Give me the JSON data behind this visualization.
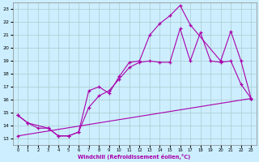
{
  "xlabel": "Windchill (Refroidissement éolien,°C)",
  "bg_color": "#cceeff",
  "grid_color": "#aacccc",
  "line_color": "#aa00aa",
  "xlim": [
    -0.5,
    23.5
  ],
  "ylim": [
    12.5,
    23.5
  ],
  "xticks": [
    0,
    1,
    2,
    3,
    4,
    5,
    6,
    7,
    8,
    9,
    10,
    11,
    12,
    13,
    14,
    15,
    16,
    17,
    18,
    19,
    20,
    21,
    22,
    23
  ],
  "yticks": [
    13,
    14,
    15,
    16,
    17,
    18,
    19,
    20,
    21,
    22,
    23
  ],
  "line1_x": [
    0,
    1,
    3,
    4,
    5,
    6,
    7,
    8,
    9,
    10,
    11,
    12,
    13,
    14,
    15,
    16,
    17,
    20,
    21,
    22,
    23
  ],
  "line1_y": [
    14.8,
    14.2,
    13.8,
    13.2,
    13.2,
    13.5,
    16.7,
    17.0,
    16.5,
    17.8,
    18.9,
    19.0,
    21.0,
    21.9,
    22.5,
    23.3,
    21.8,
    19.0,
    21.3,
    19.0,
    16.1
  ],
  "line2_x": [
    0,
    1,
    2,
    3,
    4,
    5,
    6,
    7,
    8,
    9,
    10,
    11,
    12,
    13,
    14,
    15,
    16,
    17,
    18,
    19,
    20,
    21,
    22,
    23
  ],
  "line2_y": [
    14.8,
    14.2,
    13.8,
    13.8,
    13.2,
    13.2,
    13.5,
    15.4,
    16.3,
    16.7,
    17.6,
    18.5,
    18.9,
    19.0,
    18.9,
    18.9,
    21.5,
    19.0,
    21.2,
    19.0,
    18.9,
    19.0,
    17.2,
    16.1
  ],
  "line3_x": [
    0,
    23
  ],
  "line3_y": [
    13.2,
    16.1
  ]
}
